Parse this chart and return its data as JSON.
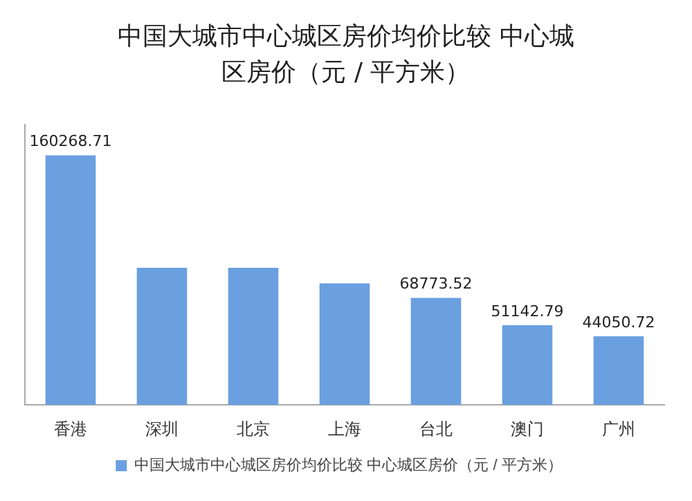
{
  "chart_data": {
    "type": "bar",
    "title": "中国大城市中心城区房价均价比较  中心城区房价（元 / 平方米）",
    "categories": [
      "香港",
      "深圳",
      "北京",
      "上海",
      "台北",
      "澳门",
      "广州"
    ],
    "series": [
      {
        "name": "中国大城市中心城区房价均价比较 中心城区房价（元 / 平方米）",
        "color": "#6a9fe0",
        "values": [
          160268.71,
          88000,
          88000,
          78000,
          68773.52,
          51142.79,
          44050.72
        ],
        "value_labels": [
          "160268.71",
          null,
          null,
          null,
          "68773.52",
          "51142.79",
          "44050.72"
        ]
      }
    ],
    "legend": "bottom",
    "grid": false,
    "tick_labels": "x"
  }
}
